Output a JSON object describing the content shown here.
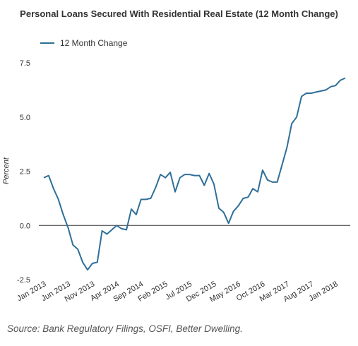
{
  "chart_data": {
    "type": "line",
    "title": "Personal Loans Secured With Residential Real Estate (12 Month  Change)",
    "ylabel": "Percent",
    "xlabel": "",
    "ylim": [
      -2.5,
      7.5
    ],
    "yticks": [
      -2.5,
      0.0,
      2.5,
      5.0,
      7.5
    ],
    "yticks_labels": [
      "-2.5",
      "0.0",
      "2.5",
      "5.0",
      "7.5"
    ],
    "legend_position": "top-left",
    "grid": false,
    "series_color": "#2e6f99",
    "x_tick_labels": [
      {
        "label": "Jan 2013",
        "index": 0
      },
      {
        "label": "Jun 2013",
        "index": 5
      },
      {
        "label": "Nov 2013",
        "index": 10
      },
      {
        "label": "Apr 2014",
        "index": 15
      },
      {
        "label": "Sep 2014",
        "index": 20
      },
      {
        "label": "Feb 2015",
        "index": 25
      },
      {
        "label": "Jul 2015",
        "index": 30
      },
      {
        "label": "Dec 2015",
        "index": 35
      },
      {
        "label": "May 2016",
        "index": 40
      },
      {
        "label": "Oct 2016",
        "index": 45
      },
      {
        "label": "Mar 2017",
        "index": 50
      },
      {
        "label": "Aug 2017",
        "index": 55
      },
      {
        "label": "Jan 2018",
        "index": 60
      }
    ],
    "series": [
      {
        "name": "12 Month Change",
        "x": [
          "2013-01",
          "2013-02",
          "2013-03",
          "2013-04",
          "2013-05",
          "2013-06",
          "2013-07",
          "2013-08",
          "2013-09",
          "2013-10",
          "2013-11",
          "2013-12",
          "2014-01",
          "2014-02",
          "2014-03",
          "2014-04",
          "2014-05",
          "2014-06",
          "2014-07",
          "2014-08",
          "2014-09",
          "2014-10",
          "2014-11",
          "2014-12",
          "2015-01",
          "2015-02",
          "2015-03",
          "2015-04",
          "2015-05",
          "2015-06",
          "2015-07",
          "2015-08",
          "2015-09",
          "2015-10",
          "2015-11",
          "2015-12",
          "2016-01",
          "2016-02",
          "2016-03",
          "2016-04",
          "2016-05",
          "2016-06",
          "2016-07",
          "2016-08",
          "2016-09",
          "2016-10",
          "2016-11",
          "2016-12",
          "2017-01",
          "2017-02",
          "2017-03",
          "2017-04",
          "2017-05",
          "2017-06",
          "2017-07",
          "2017-08",
          "2017-09",
          "2017-10",
          "2017-11",
          "2017-12",
          "2018-01",
          "2018-02",
          "2018-03"
        ],
        "values": [
          2.2,
          2.3,
          1.7,
          1.2,
          0.5,
          -0.1,
          -0.9,
          -1.1,
          -1.7,
          -2.05,
          -1.75,
          -1.7,
          -0.25,
          -0.4,
          -0.2,
          0.0,
          -0.15,
          -0.2,
          0.75,
          0.5,
          1.2,
          1.2,
          1.25,
          1.75,
          2.35,
          2.2,
          2.45,
          1.55,
          2.2,
          2.35,
          2.35,
          2.3,
          2.3,
          1.85,
          2.4,
          1.9,
          0.8,
          0.6,
          0.1,
          0.65,
          0.9,
          1.25,
          1.3,
          1.7,
          1.55,
          2.55,
          2.1,
          2.0,
          2.0,
          2.8,
          3.6,
          4.7,
          5.0,
          5.95,
          6.1,
          6.1,
          6.15,
          6.2,
          6.25,
          6.4,
          6.45,
          6.7,
          6.8
        ]
      }
    ]
  },
  "source": "Source: Bank Regulatory Filings, OSFI, Better Dwelling."
}
